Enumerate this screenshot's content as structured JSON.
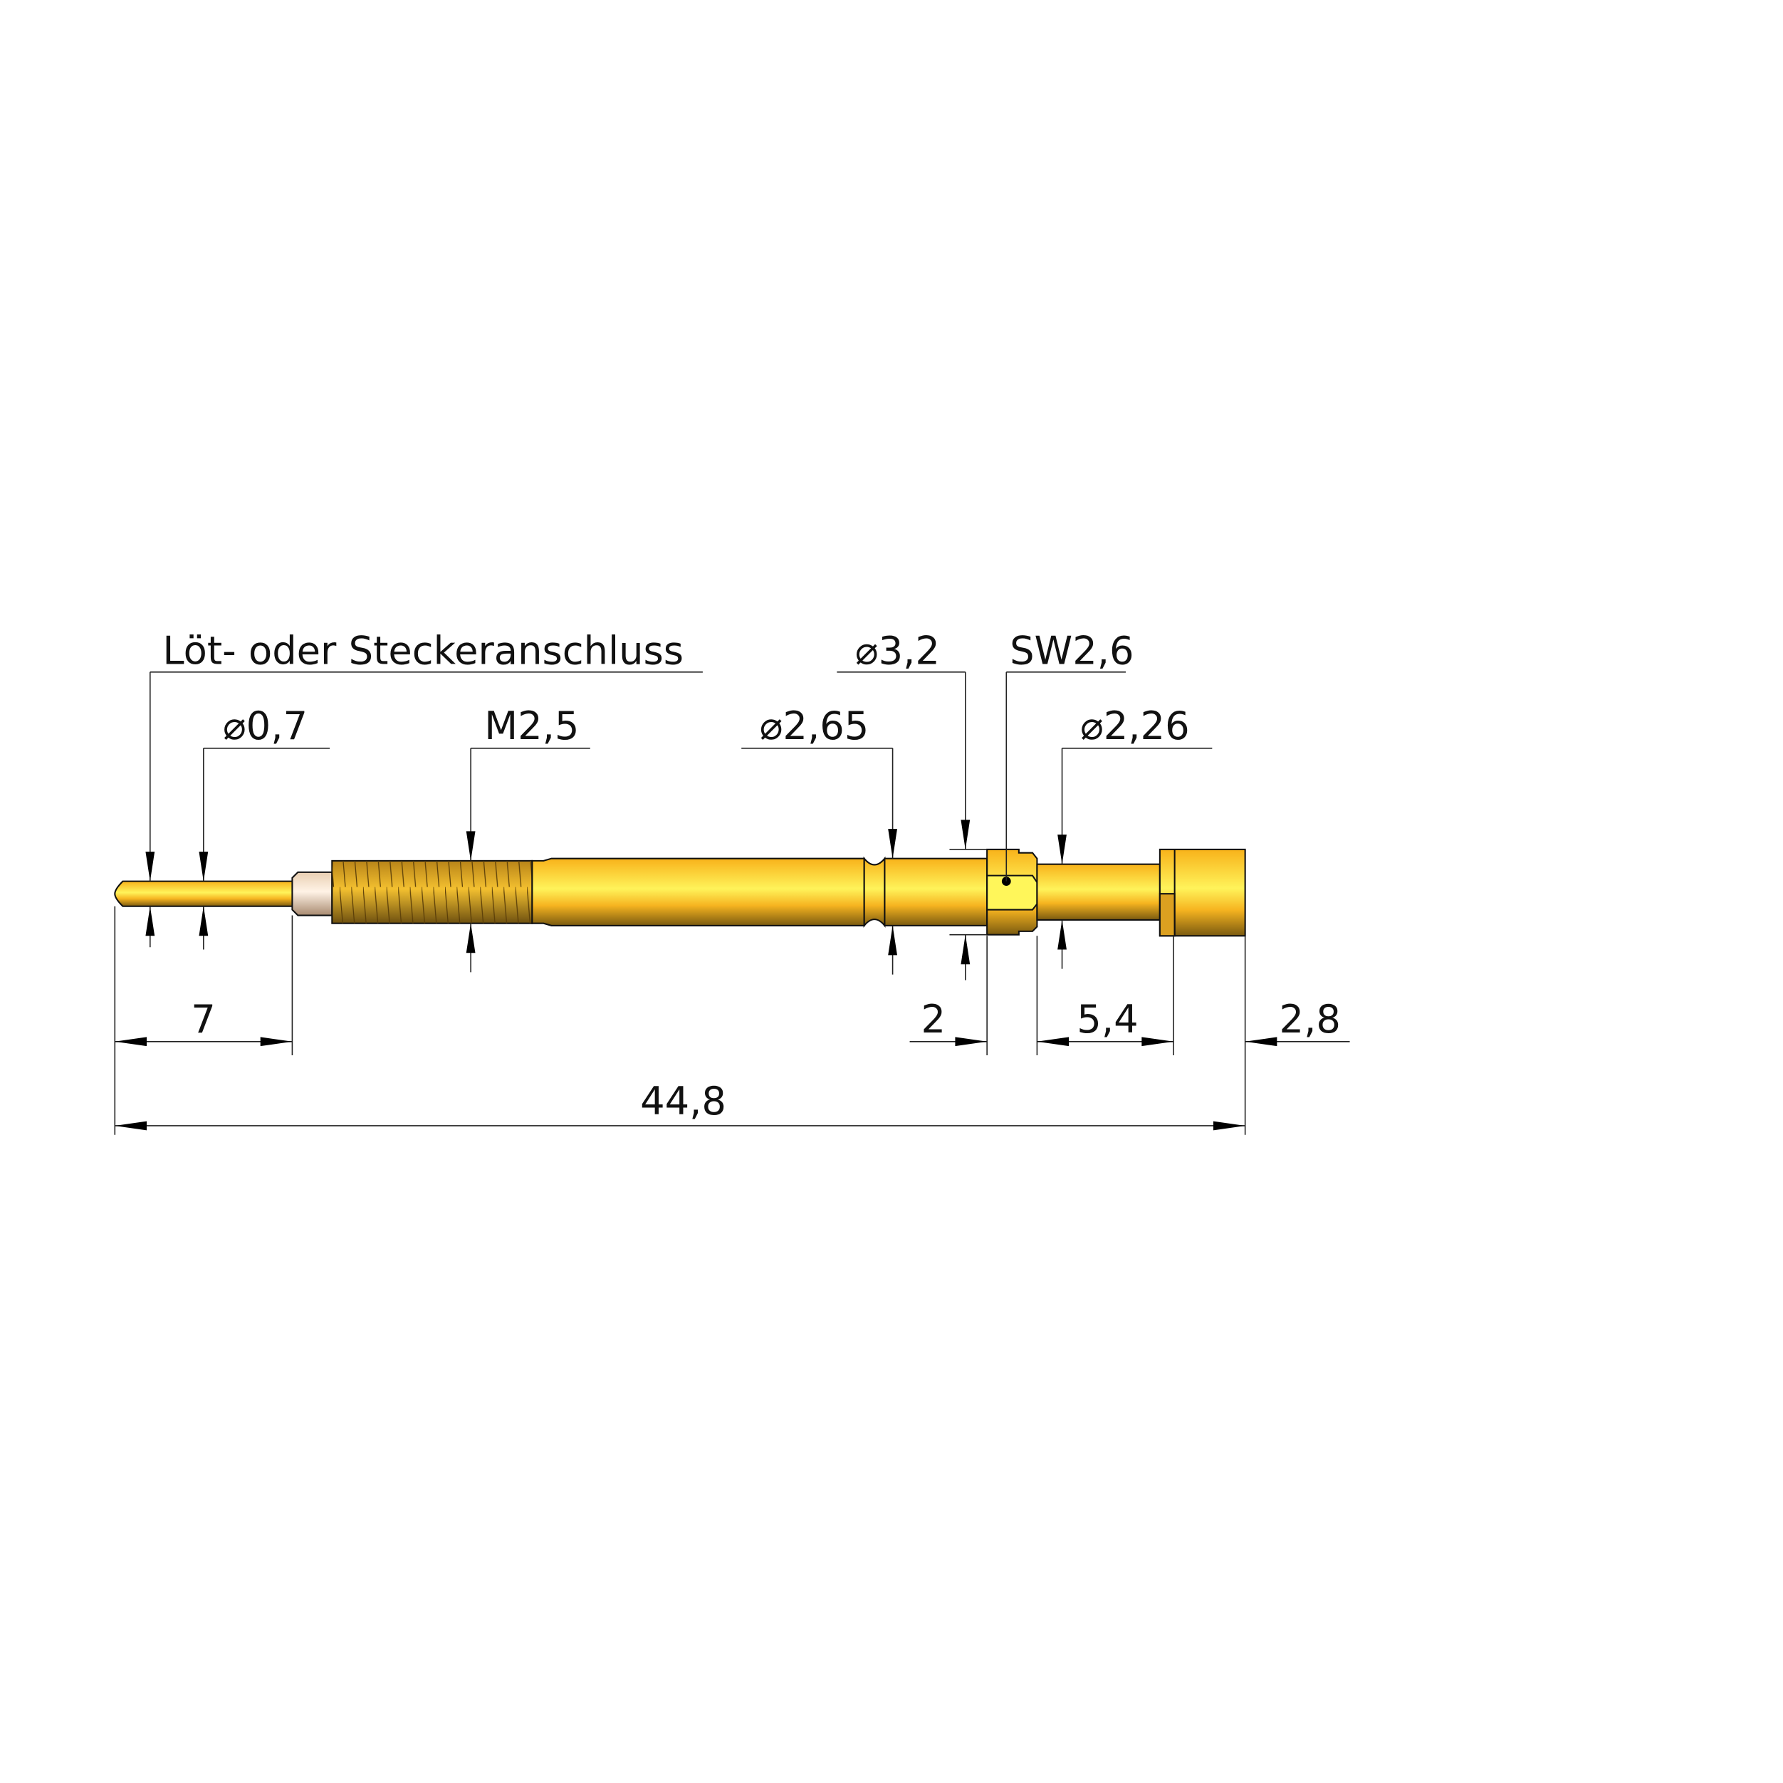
{
  "labels": {
    "connection": "Löt- oder Steckeranschluss",
    "pin_diameter": "⌀0,7",
    "thread": "M2,5",
    "body_diameter": "⌀2,65",
    "collar_diameter": "⌀3,2",
    "wrench_size": "SW2,6",
    "shaft_diameter": "⌀2,26"
  },
  "dimensions": {
    "pin_length": "7",
    "collar_length": "2",
    "shaft_length": "5,4",
    "head_length": "2,8",
    "total_length": "44,8"
  },
  "colors": {
    "gold": "#fcc21e",
    "gold_dark": "#c88c10",
    "insulator": "#f3dcc4",
    "hex_face": "#fff65a"
  }
}
